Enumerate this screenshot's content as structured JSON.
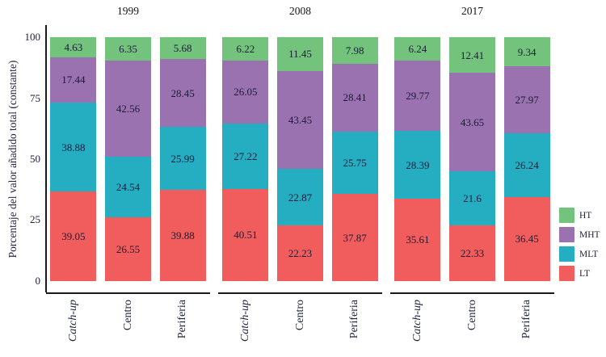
{
  "y_axis": {
    "label": "Porcentaje del valor añadido total (constante)",
    "ticks": [
      "100",
      "75",
      "50",
      "25",
      "0"
    ]
  },
  "legend": {
    "items": [
      {
        "label": "HT",
        "color": "#73C37D"
      },
      {
        "label": "MHT",
        "color": "#9B72B0"
      },
      {
        "label": "MLT",
        "color": "#25ADC2"
      },
      {
        "label": "LT",
        "color": "#F15D5C"
      }
    ]
  },
  "chart_data": {
    "type": "bar",
    "subtype": "percent-stacked-column-faceted",
    "title": "",
    "xlabel": "",
    "ylabel": "Porcentaje del valor añadido total (constante)",
    "ylim": [
      0,
      100
    ],
    "yticks": [
      0,
      25,
      50,
      75,
      100
    ],
    "grid": false,
    "legend_position": "right",
    "stack_order_top_to_bottom": [
      "HT",
      "MHT",
      "MLT",
      "LT"
    ],
    "series": [
      {
        "name": "HT",
        "color": "#73C37D"
      },
      {
        "name": "MHT",
        "color": "#9B72B0"
      },
      {
        "name": "MLT",
        "color": "#25ADC2"
      },
      {
        "name": "LT",
        "color": "#F15D5C"
      }
    ],
    "facets": [
      {
        "title": "1999",
        "bars": [
          {
            "category": "Catch-up",
            "italic": true,
            "values": {
              "HT": 4.63,
              "MHT": 17.44,
              "MLT": 38.88,
              "LT": 39.05
            }
          },
          {
            "category": "Centro",
            "italic": false,
            "values": {
              "HT": 6.35,
              "MHT": 42.56,
              "MLT": 24.54,
              "LT": 26.55
            }
          },
          {
            "category": "Periferia",
            "italic": false,
            "values": {
              "HT": 5.68,
              "MHT": 28.45,
              "MLT": 25.99,
              "LT": 39.88
            }
          }
        ]
      },
      {
        "title": "2008",
        "bars": [
          {
            "category": "Catch-up",
            "italic": true,
            "values": {
              "HT": 6.22,
              "MHT": 26.05,
              "MLT": 27.22,
              "LT": 40.51
            }
          },
          {
            "category": "Centro",
            "italic": false,
            "values": {
              "HT": 11.45,
              "MHT": 43.45,
              "MLT": 22.87,
              "LT": 22.23
            }
          },
          {
            "category": "Periferia",
            "italic": false,
            "values": {
              "HT": 7.98,
              "MHT": 28.41,
              "MLT": 25.75,
              "LT": 37.87
            }
          }
        ]
      },
      {
        "title": "2017",
        "bars": [
          {
            "category": "Catch-up",
            "italic": true,
            "values": {
              "HT": 6.24,
              "MHT": 29.77,
              "MLT": 28.39,
              "LT": 35.61
            }
          },
          {
            "category": "Centro",
            "italic": false,
            "values": {
              "HT": 12.41,
              "MHT": 43.65,
              "MLT": 21.6,
              "LT": 22.33
            }
          },
          {
            "category": "Periferia",
            "italic": false,
            "values": {
              "HT": 9.34,
              "MHT": 27.97,
              "MLT": 26.24,
              "LT": 36.45
            }
          }
        ]
      }
    ]
  }
}
